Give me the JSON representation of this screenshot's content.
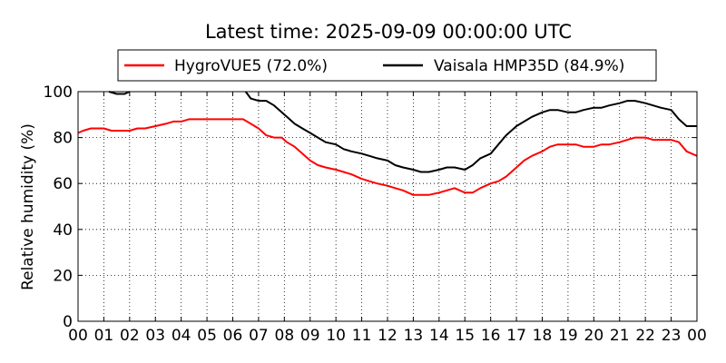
{
  "chart_data": {
    "type": "line",
    "title": "Latest time: 2025-09-09 00:00:00 UTC",
    "xlabel": "",
    "ylabel": "Relative humidity (%)",
    "xlim": [
      0,
      24
    ],
    "ylim": [
      0,
      100
    ],
    "x_tick_labels": [
      "00",
      "01",
      "02",
      "03",
      "04",
      "05",
      "06",
      "07",
      "08",
      "09",
      "10",
      "11",
      "12",
      "13",
      "14",
      "15",
      "16",
      "17",
      "18",
      "19",
      "20",
      "21",
      "22",
      "23",
      "00"
    ],
    "y_ticks": [
      0,
      20,
      40,
      60,
      80,
      100
    ],
    "grid": true,
    "legend_position": "top",
    "series": [
      {
        "name": "HygroVUE5 (72.0%)",
        "color": "#ff0000",
        "x": [
          0,
          0.2,
          0.5,
          0.7,
          1.0,
          1.3,
          1.6,
          2.0,
          2.3,
          2.6,
          3.0,
          3.4,
          3.7,
          4.0,
          4.3,
          4.7,
          5.0,
          5.3,
          5.6,
          5.9,
          6.1,
          6.4,
          6.7,
          7.0,
          7.3,
          7.6,
          7.9,
          8.1,
          8.4,
          8.7,
          9.0,
          9.3,
          9.6,
          10.0,
          10.3,
          10.6,
          11.0,
          11.3,
          11.6,
          12.0,
          12.3,
          12.6,
          13.0,
          13.3,
          13.6,
          14.0,
          14.3,
          14.6,
          15.0,
          15.3,
          15.6,
          16.0,
          16.3,
          16.6,
          17.0,
          17.3,
          17.6,
          18.0,
          18.3,
          18.6,
          19.0,
          19.3,
          19.6,
          20.0,
          20.3,
          20.6,
          21.0,
          21.3,
          21.6,
          22.0,
          22.3,
          22.6,
          23.0,
          23.3,
          23.6,
          24.0
        ],
        "y": [
          82,
          83,
          84,
          84,
          84,
          83,
          83,
          83,
          84,
          84,
          85,
          86,
          87,
          87,
          88,
          88,
          88,
          88,
          88,
          88,
          88,
          88,
          86,
          84,
          81,
          80,
          80,
          78,
          76,
          73,
          70,
          68,
          67,
          66,
          65,
          64,
          62,
          61,
          60,
          59,
          58,
          57,
          55,
          55,
          55,
          56,
          57,
          58,
          56,
          56,
          58,
          60,
          61,
          63,
          67,
          70,
          72,
          74,
          76,
          77,
          77,
          77,
          76,
          76,
          77,
          77,
          78,
          79,
          80,
          80,
          79,
          79,
          79,
          78,
          74,
          72
        ]
      },
      {
        "name": "Vaisala HMP35D (84.9%)",
        "color": "#000000",
        "x": [
          1.2,
          1.5,
          1.8,
          2.0,
          6.5,
          6.7,
          7.0,
          7.3,
          7.6,
          7.9,
          8.1,
          8.4,
          8.7,
          9.0,
          9.3,
          9.6,
          10.0,
          10.3,
          10.6,
          11.0,
          11.3,
          11.6,
          12.0,
          12.3,
          12.6,
          13.0,
          13.3,
          13.6,
          14.0,
          14.3,
          14.6,
          15.0,
          15.3,
          15.6,
          16.0,
          16.3,
          16.6,
          17.0,
          17.3,
          17.6,
          18.0,
          18.3,
          18.6,
          19.0,
          19.3,
          19.6,
          20.0,
          20.3,
          20.6,
          21.0,
          21.3,
          21.6,
          22.0,
          22.3,
          22.6,
          23.0,
          23.3,
          23.6,
          24.0
        ],
        "y": [
          100,
          99,
          99,
          100,
          100,
          97,
          96,
          96,
          94,
          91,
          89,
          86,
          84,
          82,
          80,
          78,
          77,
          75,
          74,
          73,
          72,
          71,
          70,
          68,
          67,
          66,
          65,
          65,
          66,
          67,
          67,
          66,
          68,
          71,
          73,
          77,
          81,
          85,
          87,
          89,
          91,
          92,
          92,
          91,
          91,
          92,
          93,
          93,
          94,
          95,
          96,
          96,
          95,
          94,
          93,
          92,
          88,
          85,
          85
        ]
      }
    ]
  }
}
